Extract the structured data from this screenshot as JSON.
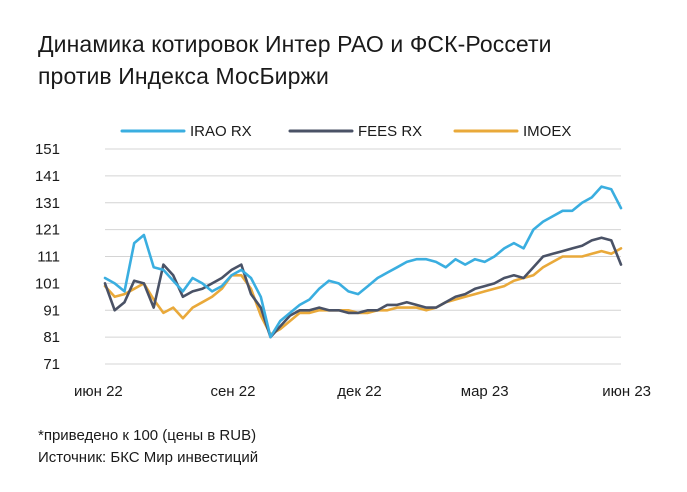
{
  "title_lines": [
    "Динамика котировок Интер РАО и ФСК-Россети",
    "против Индекса МосБиржи"
  ],
  "footer": {
    "note": "*приведено к 100 (цены в RUB)",
    "source": "Источник: БКС Мир инвестиций"
  },
  "colors": {
    "IRAO RX": "#3aaee0",
    "FEES RX": "#4a5266",
    "IMOEX": "#e9a93a",
    "grid": "#d4d4d4"
  },
  "chart_data": {
    "type": "line",
    "x_tick_labels": [
      "июн 22",
      "сен 22",
      "дек 22",
      "мар 23",
      "июн 23"
    ],
    "x": [
      "2022-06-01",
      "2022-06-08",
      "2022-06-15",
      "2022-06-22",
      "2022-06-29",
      "2022-07-06",
      "2022-07-13",
      "2022-07-20",
      "2022-07-27",
      "2022-08-03",
      "2022-08-10",
      "2022-08-17",
      "2022-08-24",
      "2022-08-31",
      "2022-09-07",
      "2022-09-14",
      "2022-09-21",
      "2022-09-28",
      "2022-10-05",
      "2022-10-12",
      "2022-10-19",
      "2022-10-26",
      "2022-11-02",
      "2022-11-09",
      "2022-11-16",
      "2022-11-23",
      "2022-11-30",
      "2022-12-07",
      "2022-12-14",
      "2022-12-21",
      "2022-12-28",
      "2023-01-04",
      "2023-01-11",
      "2023-01-18",
      "2023-01-25",
      "2023-02-01",
      "2023-02-08",
      "2023-02-15",
      "2023-02-22",
      "2023-03-01",
      "2023-03-08",
      "2023-03-15",
      "2023-03-22",
      "2023-03-29",
      "2023-04-05",
      "2023-04-12",
      "2023-04-19",
      "2023-04-26",
      "2023-05-03",
      "2023-05-10",
      "2023-05-17",
      "2023-05-24",
      "2023-05-31",
      "2023-06-07"
    ],
    "series": [
      {
        "name": "IRAO RX",
        "values": [
          103,
          101,
          98,
          116,
          119,
          107,
          106,
          102,
          98,
          103,
          101,
          98,
          100,
          104,
          106,
          103,
          96,
          81,
          87,
          90,
          93,
          95,
          99,
          102,
          101,
          98,
          97,
          100,
          103,
          105,
          107,
          109,
          110,
          110,
          109,
          107,
          110,
          108,
          110,
          109,
          111,
          114,
          116,
          114,
          121,
          124,
          126,
          128,
          128,
          131,
          133,
          137,
          136,
          129
        ]
      },
      {
        "name": "FEES RX",
        "values": [
          101,
          91,
          94,
          102,
          101,
          92,
          108,
          104,
          96,
          98,
          99,
          101,
          103,
          106,
          108,
          97,
          92,
          81,
          85,
          89,
          91,
          91,
          92,
          91,
          91,
          90,
          90,
          91,
          91,
          93,
          93,
          94,
          93,
          92,
          92,
          94,
          96,
          97,
          99,
          100,
          101,
          103,
          104,
          103,
          107,
          111,
          112,
          113,
          114,
          115,
          117,
          118,
          117,
          108
        ]
      },
      {
        "name": "IMOEX",
        "values": [
          100,
          96,
          97,
          99,
          101,
          95,
          90,
          92,
          88,
          92,
          94,
          96,
          99,
          104,
          104,
          99,
          89,
          82,
          84,
          87,
          90,
          90,
          91,
          91,
          91,
          91,
          90,
          90,
          91,
          91,
          92,
          92,
          92,
          91,
          92,
          94,
          95,
          96,
          97,
          98,
          99,
          100,
          102,
          103,
          104,
          107,
          109,
          111,
          111,
          111,
          112,
          113,
          112,
          114
        ]
      }
    ],
    "ylim": [
      71,
      151
    ],
    "y_ticks": [
      151,
      141,
      131,
      121,
      111,
      101,
      91,
      81,
      71
    ],
    "grid": "horizontal",
    "legend": "top"
  }
}
